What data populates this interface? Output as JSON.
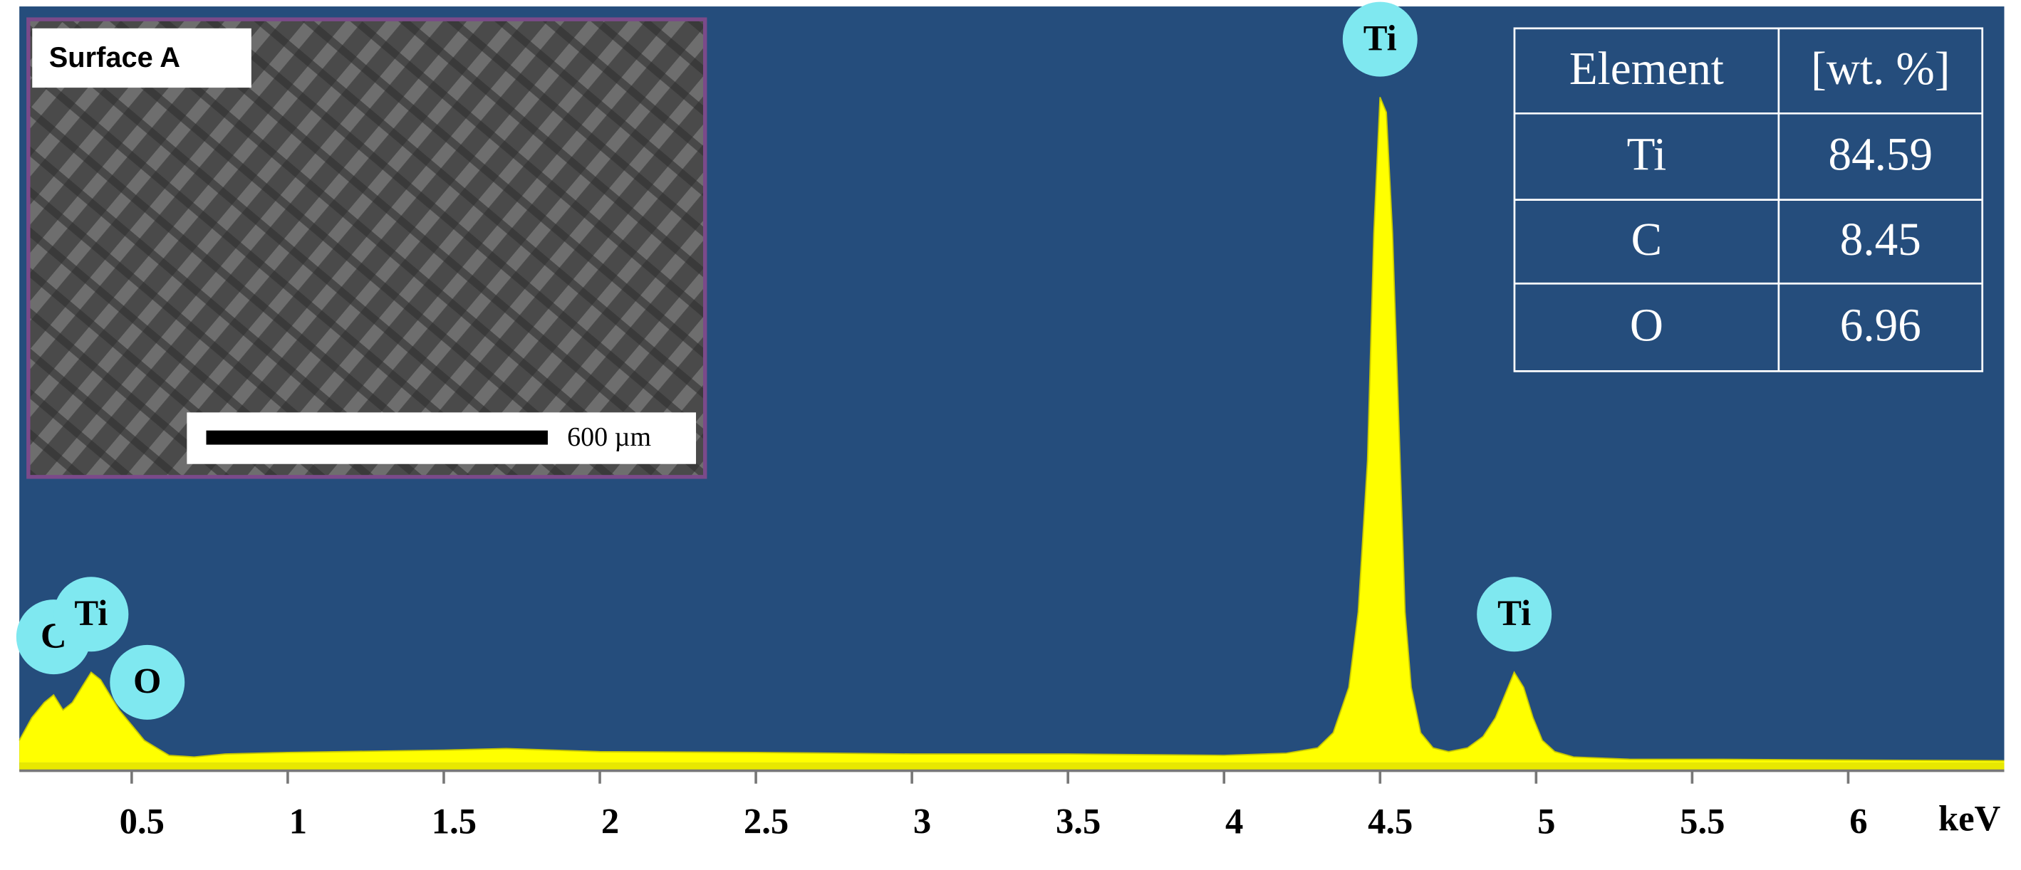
{
  "chart_data": {
    "type": "area",
    "x": [
      0.14,
      0.18,
      0.22,
      0.25,
      0.28,
      0.31,
      0.34,
      0.37,
      0.4,
      0.43,
      0.46,
      0.5,
      0.54,
      0.58,
      0.62,
      0.7,
      0.8,
      1.0,
      1.5,
      1.7,
      2.0,
      2.5,
      3.0,
      3.5,
      4.0,
      4.2,
      4.3,
      4.35,
      4.4,
      4.43,
      4.46,
      4.48,
      4.5,
      4.52,
      4.54,
      4.56,
      4.58,
      4.6,
      4.63,
      4.67,
      4.72,
      4.78,
      4.83,
      4.87,
      4.9,
      4.93,
      4.96,
      4.99,
      5.02,
      5.06,
      5.12,
      5.3,
      5.6,
      6.0,
      6.5
    ],
    "values": [
      3,
      6,
      8,
      9,
      7,
      8,
      10,
      12,
      11,
      9,
      7,
      5,
      3,
      2,
      1,
      0.8,
      1.2,
      1.4,
      1.7,
      1.9,
      1.5,
      1.4,
      1.2,
      1.2,
      1.0,
      1.3,
      2,
      4,
      10,
      20,
      40,
      70,
      88,
      86,
      70,
      45,
      20,
      10,
      4,
      2,
      1.5,
      2,
      3.5,
      6,
      9,
      12,
      10,
      6,
      3,
      1.5,
      0.8,
      0.5,
      0.5,
      0.4,
      0.3
    ],
    "color": "#ffff00",
    "background": "#254d7c",
    "xlim": [
      0.14,
      6.5
    ],
    "ylim": [
      0,
      100
    ],
    "xticks": [
      0.5,
      1,
      1.5,
      2,
      2.5,
      3,
      3.5,
      4,
      4.5,
      5,
      5.5,
      6
    ],
    "x_label": "keV",
    "annotations": [
      {
        "text": "C",
        "x": 0.25
      },
      {
        "text": "Ti",
        "x": 0.37
      },
      {
        "text": "O",
        "x": 0.55
      },
      {
        "text": "Ti",
        "x": 4.5
      },
      {
        "text": "Ti",
        "x": 4.93
      }
    ],
    "annotation_color": "#7fe8f0"
  },
  "table": {
    "header": [
      "Element",
      "[wt. %]"
    ],
    "rows": [
      [
        "Ti",
        "84.59"
      ],
      [
        "C",
        "8.45"
      ],
      [
        "O",
        "6.96"
      ]
    ]
  },
  "inset": {
    "label": "Surface A",
    "scale_bar": "600 µm"
  }
}
